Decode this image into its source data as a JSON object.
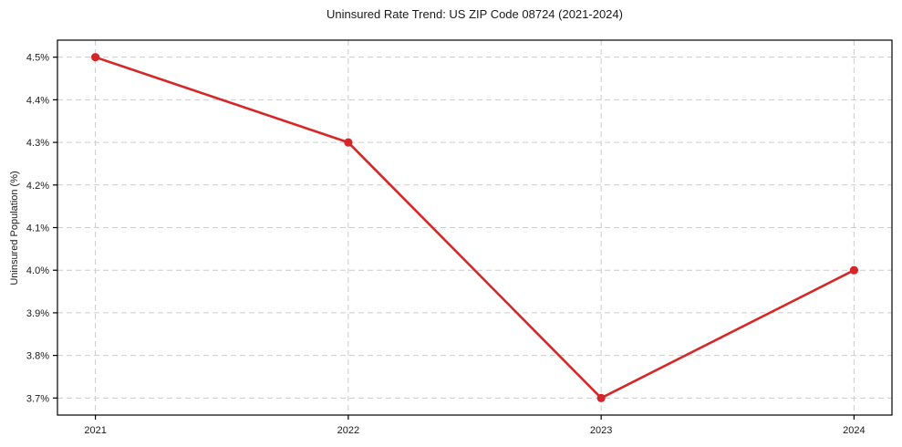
{
  "chart_data": {
    "type": "line",
    "title": "Uninsured Rate Trend: US ZIP Code 08724 (2021-2024)",
    "xlabel": "",
    "ylabel": "Uninsured Population (%)",
    "x": [
      2021,
      2022,
      2023,
      2024
    ],
    "values": [
      4.5,
      4.3,
      3.7,
      4.0
    ],
    "x_tick_labels": [
      "2021",
      "2022",
      "2023",
      "2024"
    ],
    "y_ticks": [
      3.7,
      3.8,
      3.9,
      4.0,
      4.1,
      4.2,
      4.3,
      4.4,
      4.5
    ],
    "y_tick_labels": [
      "3.7%",
      "3.8%",
      "3.9%",
      "4.0%",
      "4.1%",
      "4.2%",
      "4.3%",
      "4.4%",
      "4.5%"
    ],
    "xlim": [
      2020.85,
      2024.15
    ],
    "ylim": [
      3.66,
      4.54
    ],
    "grid": true,
    "grid_style": "dashed",
    "legend_position": "none",
    "marker": "circle",
    "colors": {
      "line": "#d62728",
      "grid": "#cccccc",
      "spine": "#000000",
      "text": "#1a1a1a",
      "background": "#ffffff"
    }
  }
}
